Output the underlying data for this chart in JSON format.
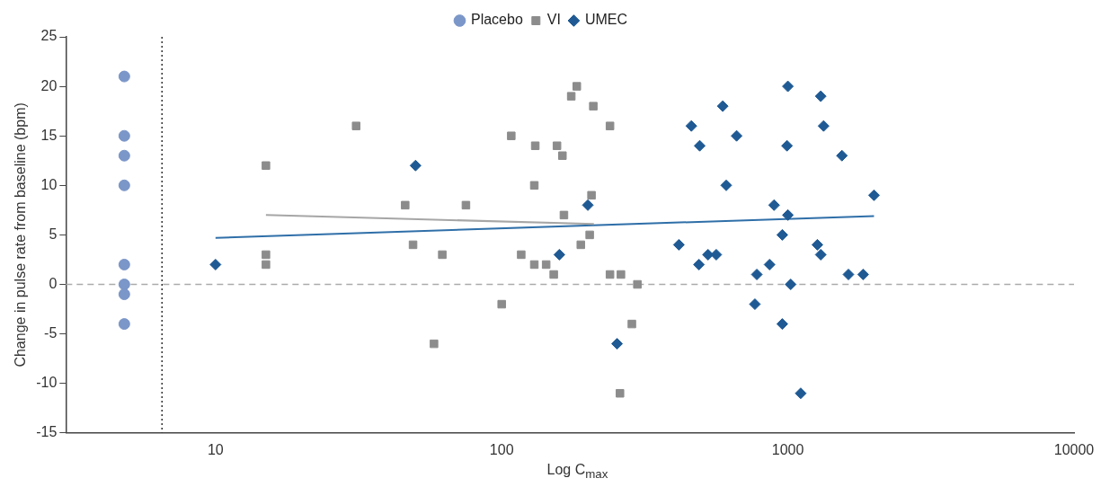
{
  "chart_data": {
    "type": "scatter",
    "xlabel": "Log C$_{max}$",
    "ylabel": "Change in pulse rate from baseline (bpm)",
    "log": "x",
    "xlim": [
      3,
      10000
    ],
    "xticks": [
      10,
      100,
      1000,
      10000
    ],
    "ylim": [
      -15,
      25
    ],
    "yticks": [
      -15,
      -10,
      -5,
      0,
      5,
      10,
      15,
      20,
      25
    ],
    "grid": false,
    "legend": "top",
    "ref_lines": [
      {
        "axis": "y",
        "value": 0,
        "color": "#aaaaaa",
        "line_style": "dashed"
      },
      {
        "axis": "x",
        "value": 6.5,
        "color": "#333333",
        "line_style": "dotted"
      }
    ],
    "series": [
      {
        "name": "Placebo",
        "marker": "circle",
        "color": "#7b96c8",
        "x": [
          4.8,
          4.8,
          4.8,
          4.8,
          4.8,
          4.8,
          4.8,
          4.8
        ],
        "values": [
          21,
          15,
          13,
          10,
          2,
          0,
          -1,
          -4
        ]
      },
      {
        "name": "VI",
        "marker": "square",
        "color": "#8c8c8c",
        "x": [
          15,
          15,
          15,
          31,
          46,
          49,
          62,
          75,
          58,
          100,
          108,
          131,
          130,
          117,
          130,
          143,
          152,
          156,
          163,
          165,
          175,
          183,
          209,
          206,
          203,
          189,
          239,
          239,
          261,
          298,
          285,
          259
        ],
        "values": [
          12,
          3,
          2,
          16,
          8,
          4,
          3,
          8,
          -6,
          -2,
          15,
          14,
          10,
          3,
          2,
          2,
          1,
          14,
          13,
          7,
          19,
          20,
          18,
          9,
          5,
          4,
          16,
          1,
          1,
          0,
          -4,
          -11
        ]
      },
      {
        "name": "UMEC",
        "marker": "diamond",
        "color": "#1f5a94",
        "x": [
          10,
          50,
          200,
          159,
          253,
          460,
          492,
          416,
          489,
          526,
          562,
          592,
          609,
          662,
          779,
          767,
          863,
          895,
          956,
          993,
          1000,
          1000,
          1023,
          956,
          1109,
          1303,
          1333,
          1268,
          1303,
          1545,
          1628,
          1832,
          2000
        ],
        "values": [
          2,
          12,
          8,
          3,
          -6,
          16,
          14,
          4,
          2,
          3,
          3,
          18,
          10,
          15,
          1,
          -2,
          2,
          8,
          5,
          14,
          20,
          7,
          0,
          -4,
          -11,
          19,
          16,
          4,
          3,
          13,
          1,
          1,
          9
        ]
      },
      {
        "type": "line",
        "marker": "none",
        "color": "#a6a6a6",
        "x": [
          15,
          210
        ],
        "values": [
          7,
          6.1
        ]
      },
      {
        "type": "line",
        "marker": "none",
        "color": "#2f6fa8",
        "x": [
          10,
          2000
        ],
        "values": [
          4.7,
          6.9
        ]
      }
    ]
  }
}
